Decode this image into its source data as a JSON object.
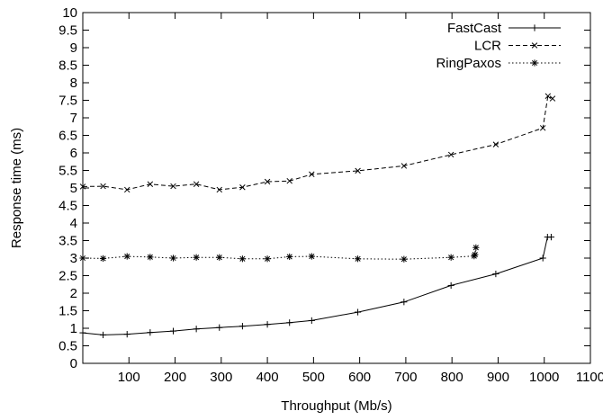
{
  "chart_data": {
    "type": "line",
    "xlabel": "Throughput (Mb/s)",
    "ylabel": "Response time (ms)",
    "xlim": [
      0,
      1100
    ],
    "ylim": [
      0,
      10
    ],
    "x_ticks": [
      "100",
      "200",
      "300",
      "400",
      "500",
      "600",
      "700",
      "800",
      "900",
      "1000",
      "1100"
    ],
    "y_ticks": [
      "0",
      "0.5",
      "1",
      "1.5",
      "2",
      "2.5",
      "3",
      "3.5",
      "4",
      "4.5",
      "5",
      "5.5",
      "6",
      "6.5",
      "7",
      "7.5",
      "8",
      "8.5",
      "9",
      "9.5",
      "10"
    ],
    "grid": false,
    "legend_position": "top-right",
    "series": [
      {
        "name": "FastCast",
        "line_style": "solid",
        "marker": "plus",
        "points": [
          [
            0,
            0.87
          ],
          [
            44,
            0.81
          ],
          [
            96,
            0.83
          ],
          [
            146,
            0.88
          ],
          [
            196,
            0.92
          ],
          [
            246,
            0.98
          ],
          [
            296,
            1.02
          ],
          [
            346,
            1.06
          ],
          [
            400,
            1.11
          ],
          [
            448,
            1.16
          ],
          [
            496,
            1.22
          ],
          [
            596,
            1.46
          ],
          [
            696,
            1.75
          ],
          [
            798,
            2.22
          ],
          [
            895,
            2.55
          ],
          [
            997,
            3.0
          ],
          [
            1007,
            3.6
          ],
          [
            1015,
            3.6
          ]
        ]
      },
      {
        "name": "LCR",
        "line_style": "dashed",
        "marker": "cross",
        "points": [
          [
            0,
            5.04
          ],
          [
            44,
            5.05
          ],
          [
            96,
            4.95
          ],
          [
            146,
            5.11
          ],
          [
            196,
            5.05
          ],
          [
            246,
            5.11
          ],
          [
            296,
            4.95
          ],
          [
            346,
            5.02
          ],
          [
            400,
            5.18
          ],
          [
            448,
            5.2
          ],
          [
            496,
            5.39
          ],
          [
            596,
            5.49
          ],
          [
            696,
            5.63
          ],
          [
            798,
            5.95
          ],
          [
            895,
            6.24
          ],
          [
            997,
            6.71
          ],
          [
            1008,
            7.62
          ],
          [
            1018,
            7.55
          ]
        ]
      },
      {
        "name": "RingPaxos",
        "line_style": "dotted",
        "marker": "star",
        "points": [
          [
            0,
            3.0
          ],
          [
            44,
            2.99
          ],
          [
            96,
            3.05
          ],
          [
            146,
            3.03
          ],
          [
            196,
            3.0
          ],
          [
            246,
            3.02
          ],
          [
            296,
            3.02
          ],
          [
            346,
            2.98
          ],
          [
            400,
            2.98
          ],
          [
            448,
            3.04
          ],
          [
            496,
            3.05
          ],
          [
            596,
            2.98
          ],
          [
            696,
            2.97
          ],
          [
            798,
            3.02
          ],
          [
            848,
            3.06
          ],
          [
            850,
            3.1
          ],
          [
            852,
            3.3
          ]
        ]
      }
    ]
  }
}
